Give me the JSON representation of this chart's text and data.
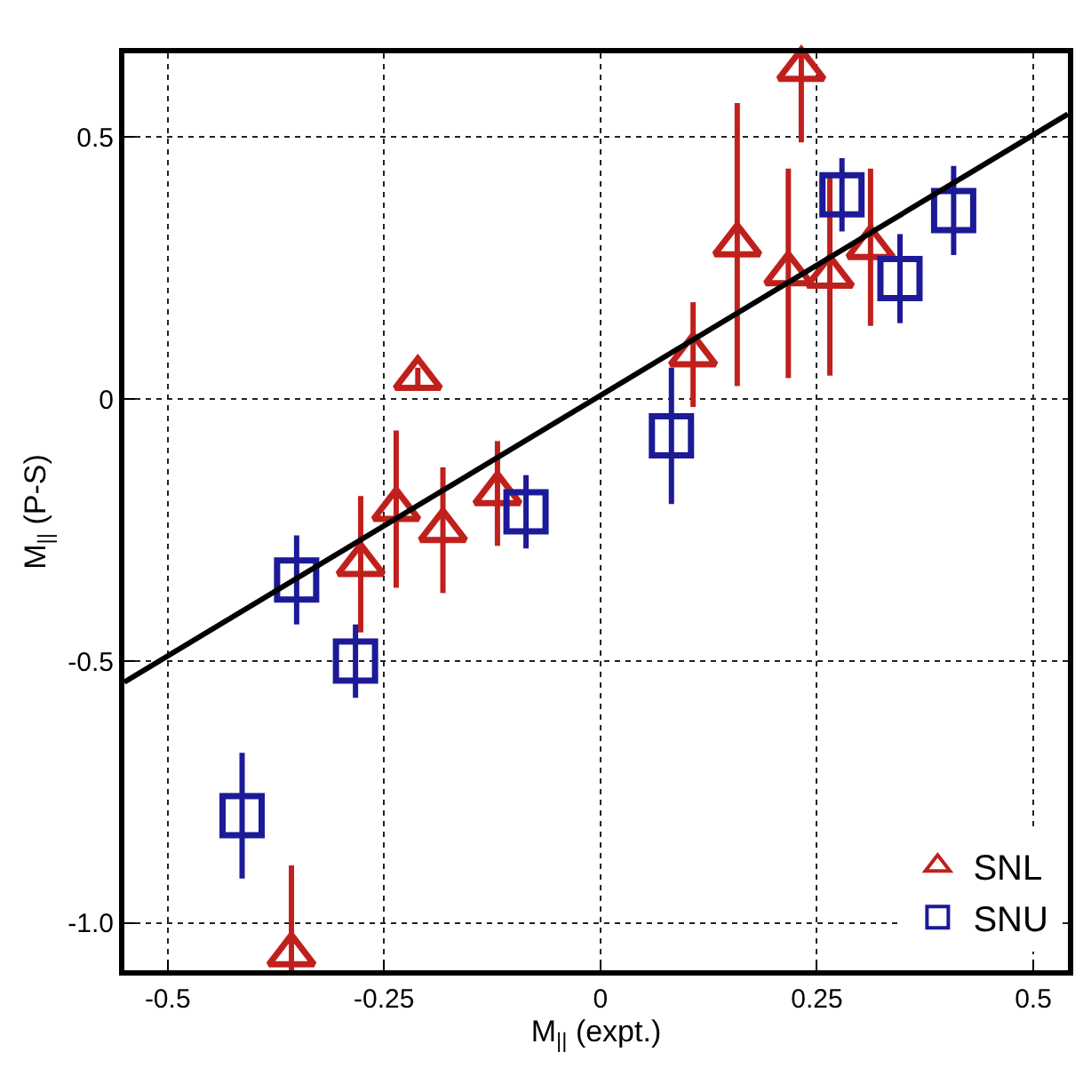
{
  "chart_data": {
    "type": "scatter",
    "xlabel": "M$_{||}$ (expt.)",
    "ylabel": "M$_{||}$ (P-S)",
    "xlim": [
      -0.55,
      0.54
    ],
    "ylim": [
      -1.09,
      0.66
    ],
    "xticks": [
      -0.5,
      -0.25,
      0,
      0.25,
      0.5
    ],
    "yticks": [
      0.5,
      0,
      -0.5,
      {
        "value": -1.0,
        "label": "-1.0"
      }
    ],
    "grid": true,
    "legend": "bottom right",
    "series": [
      {
        "name": "SNL",
        "color": "#c0201c",
        "marker": "triangle",
        "x": [
          0.232,
          -0.211,
          0.158,
          0.217,
          0.265,
          0.312,
          0.107,
          -0.236,
          -0.182,
          -0.119,
          -0.277,
          -0.357
        ],
        "values": [
          0.63,
          0.04,
          0.295,
          0.24,
          0.235,
          0.29,
          0.085,
          -0.21,
          -0.25,
          -0.18,
          -0.315,
          -1.06
        ],
        "errors": [
          0.14,
          0.02,
          0.27,
          0.2,
          0.19,
          0.15,
          0.1,
          0.15,
          0.12,
          0.1,
          0.13,
          0.17
        ]
      },
      {
        "name": "SNU",
        "color": "#1c1a96",
        "marker": "square",
        "x": [
          0.279,
          0.408,
          0.346,
          0.082,
          -0.086,
          -0.351,
          -0.283,
          -0.414
        ],
        "values": [
          0.39,
          0.36,
          0.23,
          -0.07,
          -0.215,
          -0.345,
          -0.5,
          -0.795
        ],
        "errors": [
          0.07,
          0.085,
          0.085,
          0.13,
          0.07,
          0.085,
          0.07,
          0.12
        ]
      },
      {
        "type": "line",
        "color": "#000000",
        "marker": "none",
        "line_style": "solid",
        "x": [
          -0.55,
          0.54
        ],
        "values": [
          -0.54,
          0.544
        ]
      }
    ]
  }
}
